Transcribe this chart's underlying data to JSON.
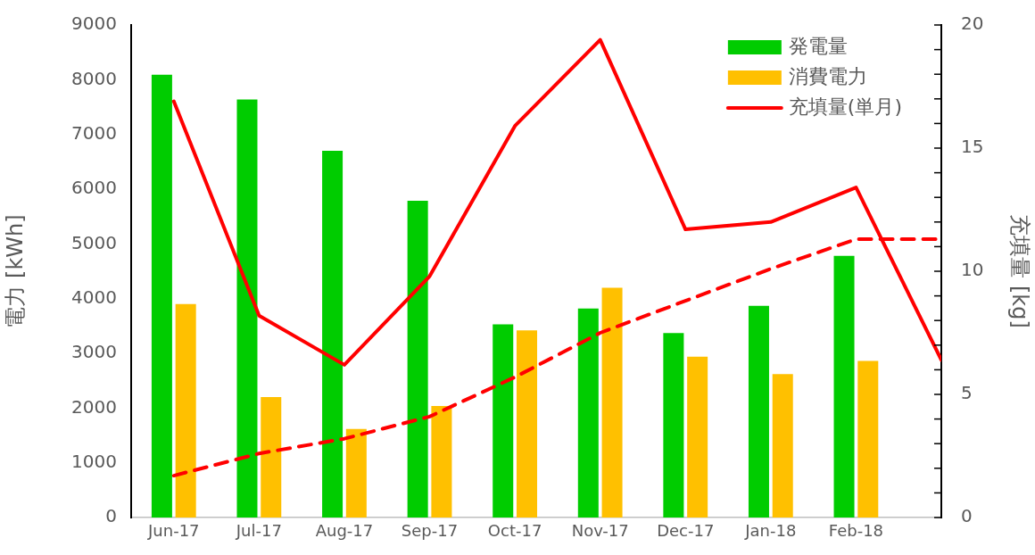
{
  "chart_data": {
    "type": "bar",
    "categories": [
      "Jun-17",
      "Jul-17",
      "Aug-17",
      "Sep-17",
      "Oct-17",
      "Nov-17",
      "Dec-17",
      "Jan-18",
      "Feb-18",
      null
    ],
    "series": [
      {
        "name": "発電量",
        "color": "#00cc00",
        "values": [
          8090,
          7640,
          6700,
          5790,
          3530,
          3820,
          3370,
          3870,
          4780,
          null
        ]
      },
      {
        "name": "消費電力",
        "color": "#ffc000",
        "values": [
          3900,
          2200,
          1620,
          2040,
          3420,
          4200,
          2940,
          2620,
          2860,
          null
        ]
      },
      {
        "name": "充填量(単月)",
        "type": "line",
        "axis": "y2",
        "color": "#ff0000",
        "line_style": "solid",
        "values": [
          16.9,
          8.2,
          6.2,
          9.8,
          15.9,
          19.4,
          11.7,
          12.0,
          13.4,
          6.4
        ]
      },
      {
        "type": "line",
        "axis": "y2",
        "color": "#ff0000",
        "line_style": "dashed",
        "values": [
          1.7,
          2.6,
          3.2,
          4.1,
          5.7,
          7.5,
          8.8,
          10.1,
          11.3,
          11.3
        ]
      }
    ],
    "ylabel": "電力 [kWh]",
    "y2label": "充填量 [kg]",
    "ylim": [
      0,
      9000
    ],
    "yticks": [
      0,
      1000,
      2000,
      3000,
      4000,
      5000,
      6000,
      7000,
      8000,
      9000
    ],
    "y2lim": [
      0,
      20
    ],
    "y2ticks": [
      0,
      {
        "value": 1,
        "label": null
      },
      {
        "value": 2,
        "label": null
      },
      {
        "value": 3,
        "label": null
      },
      {
        "value": 4,
        "label": null
      },
      5,
      {
        "value": 6,
        "label": null
      },
      {
        "value": 7,
        "label": null
      },
      {
        "value": 8,
        "label": null
      },
      {
        "value": 9,
        "label": null
      },
      10,
      {
        "value": 11,
        "label": null
      },
      {
        "value": 12,
        "label": null
      },
      {
        "value": 13,
        "label": null
      },
      {
        "value": 14,
        "label": null
      },
      15,
      {
        "value": 16,
        "label": null
      },
      {
        "value": 17,
        "label": null
      },
      {
        "value": 18,
        "label": null
      },
      {
        "value": 19,
        "label": null
      },
      20
    ],
    "grid": false,
    "legend": "top right",
    "marker": "none"
  }
}
